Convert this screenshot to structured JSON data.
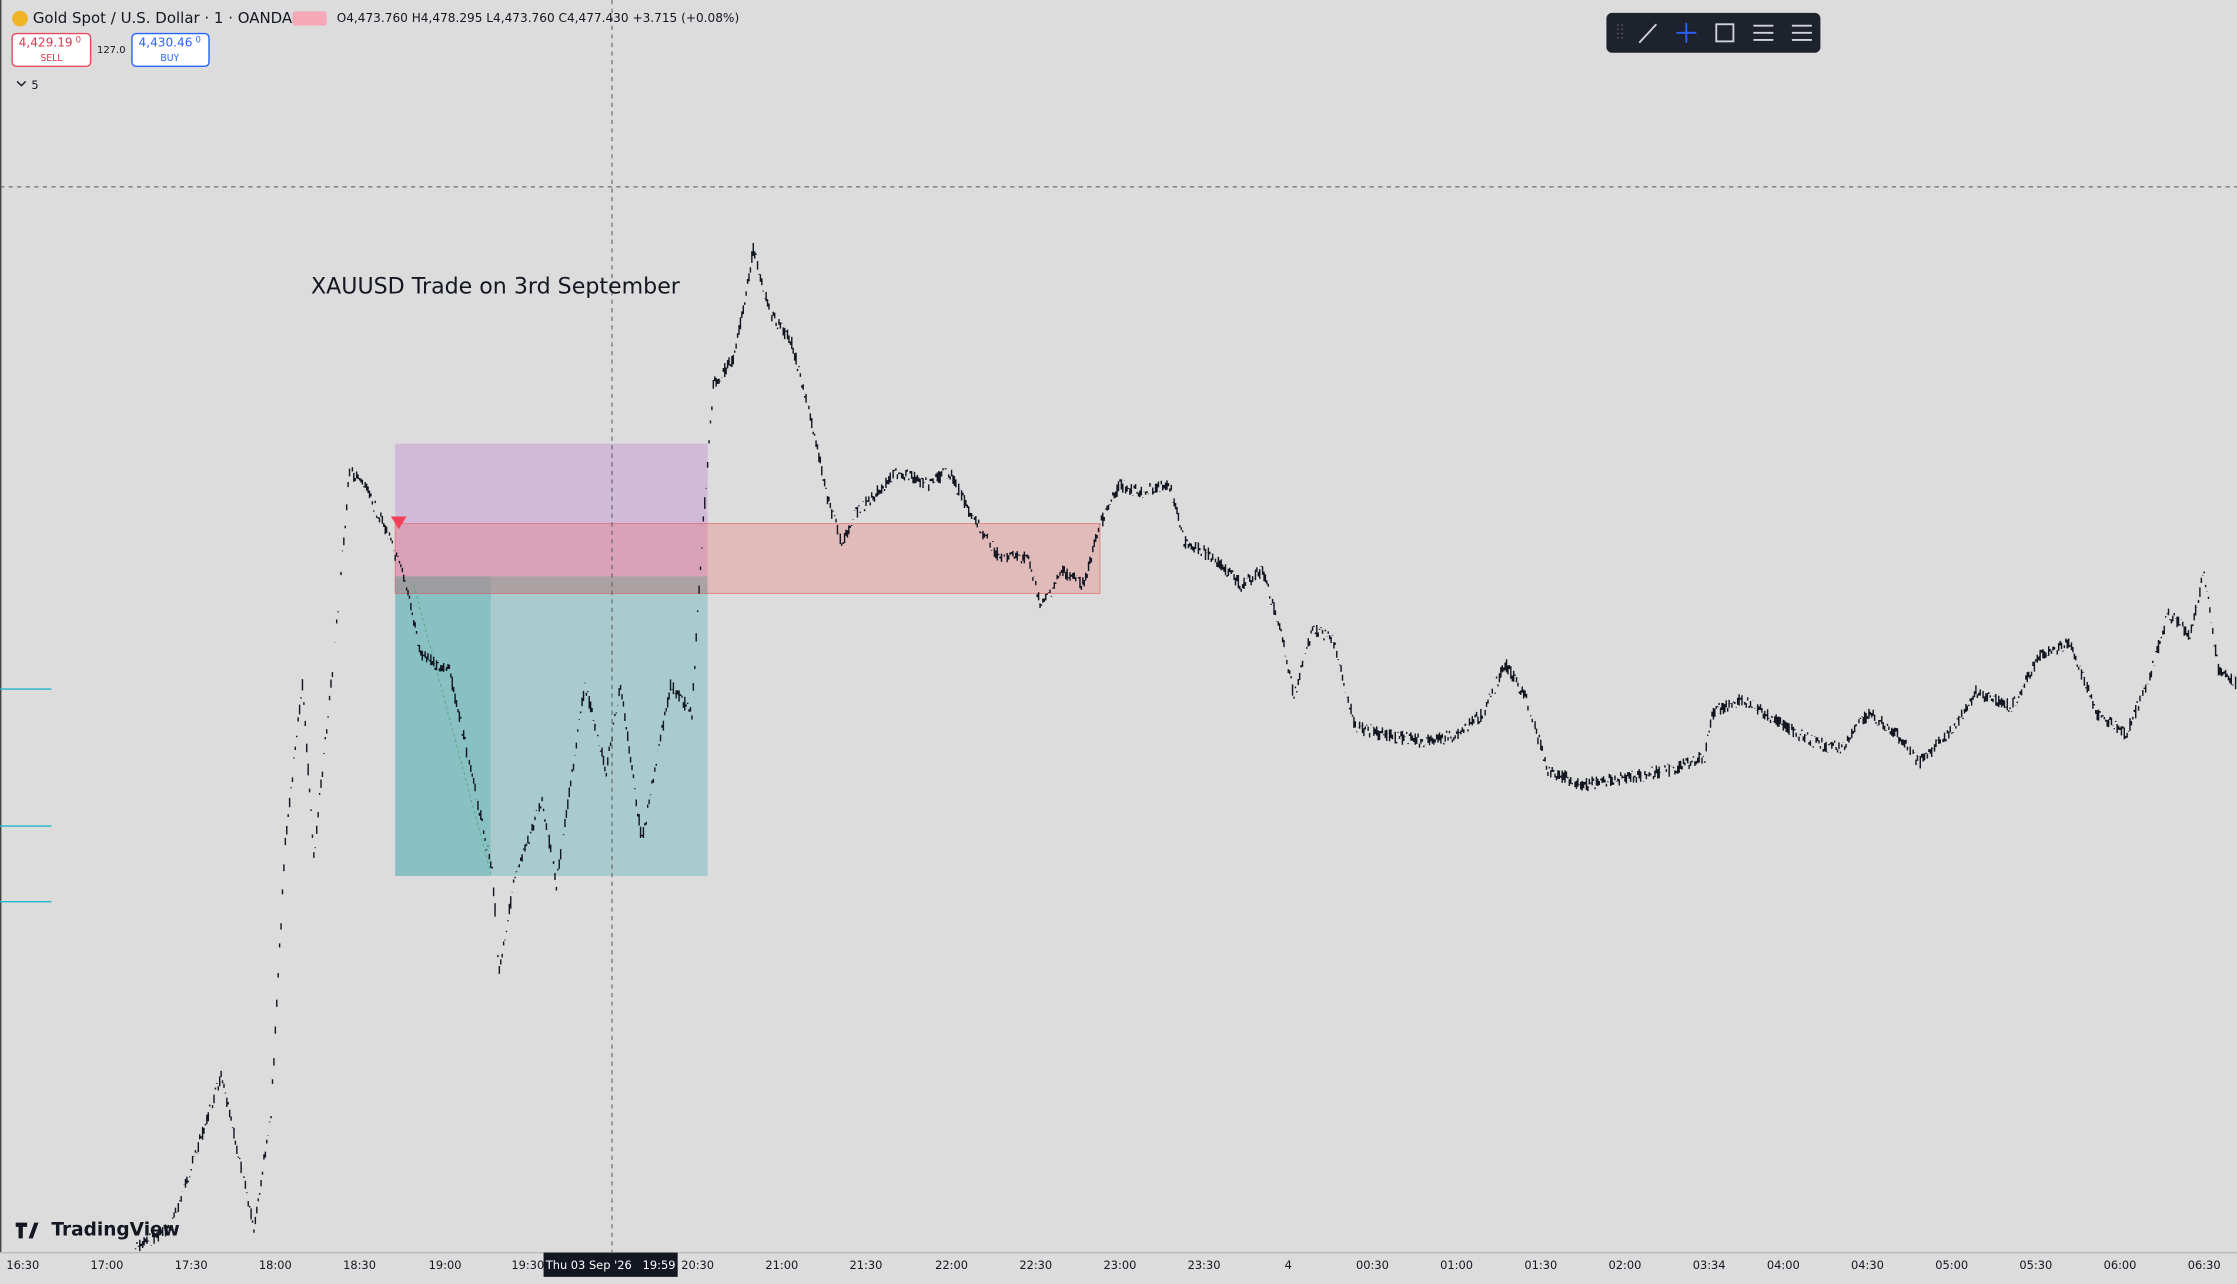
{
  "header": {
    "symbol": "Gold Spot / U.S. Dollar · 1 · OANDA",
    "ohlc": "O4,473.760 H4,478.295 L4,473.760 C4,477.430 +3.715 (+0.08%)",
    "sell_price": "4,429.19",
    "sell_fraction": "0",
    "sell_label": "SELL",
    "spread": "127.0",
    "buy_price": "4,430.46",
    "buy_fraction": "0",
    "buy_label": "BUY",
    "indicators": "5"
  },
  "annotation": "XAUUSD Trade on 3rd September",
  "logo": "TradingView",
  "time_axis": [
    "16:30",
    "17:00",
    "17:30",
    "18:00",
    "18:30",
    "19:00",
    "19:30",
    "20:30",
    "21:00",
    "21:30",
    "22:00",
    "22:30",
    "23:00",
    "23:30",
    "4",
    "00:30",
    "01:00",
    "01:30",
    "02:00",
    "03:34",
    "04:00",
    "04:30",
    "05:00",
    "05:30",
    "06:00",
    "06:30"
  ],
  "crosshair_label": "Thu 03 Sep '26   19:59"
}
